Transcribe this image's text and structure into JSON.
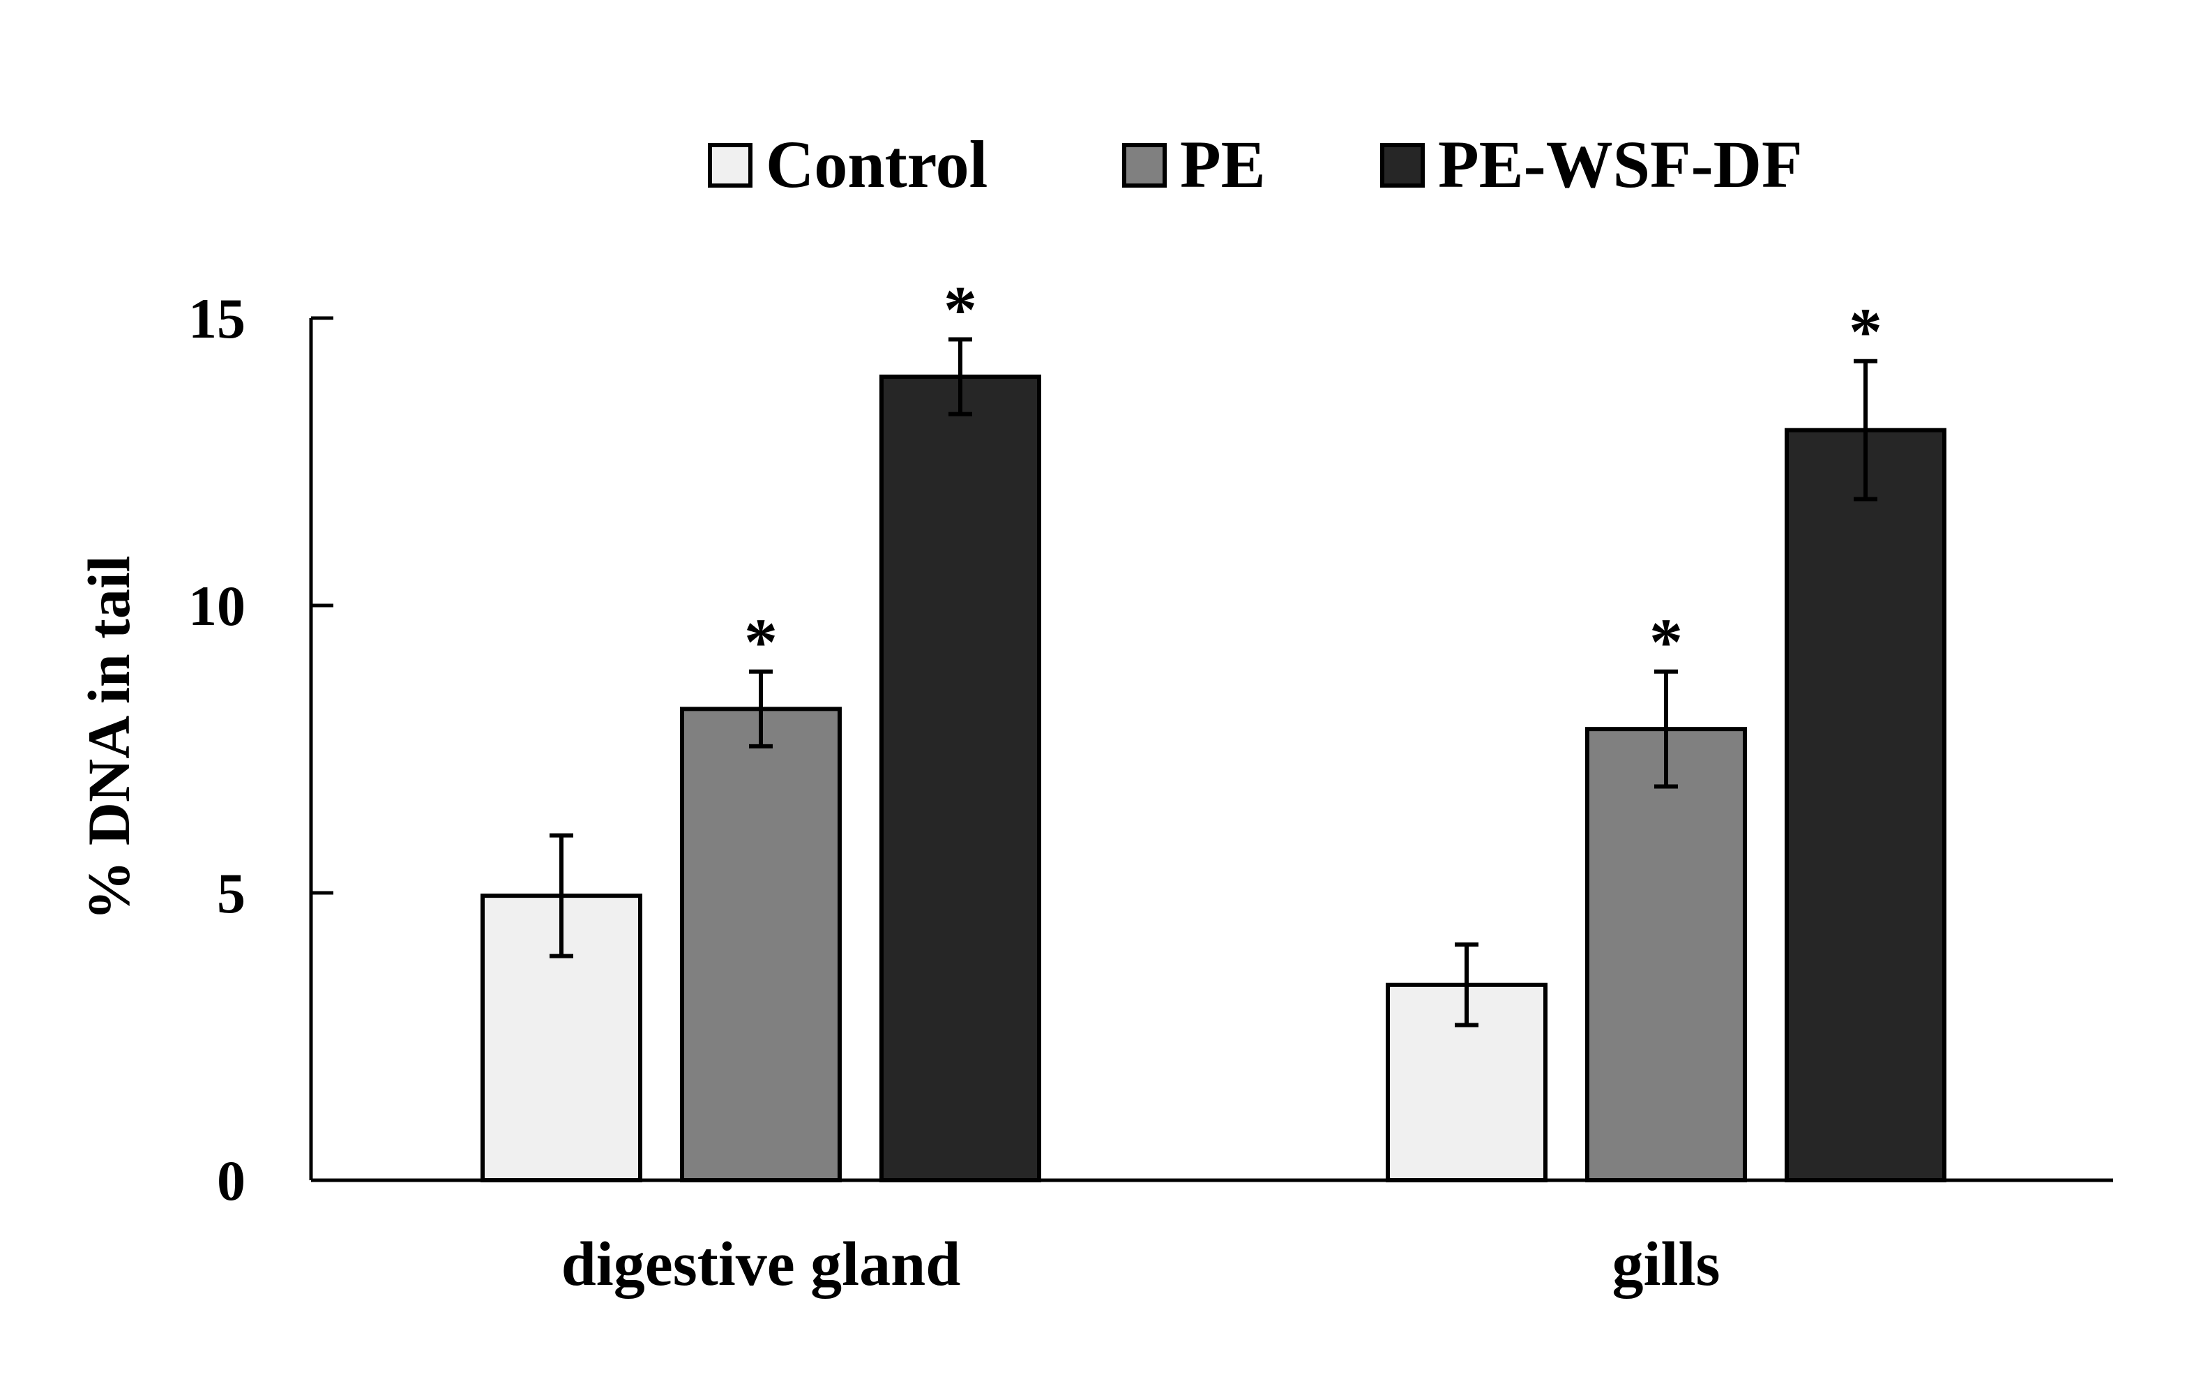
{
  "chart_data": {
    "type": "bar",
    "title": "",
    "xlabel": "",
    "ylabel": "% DNA in tail",
    "ylim": [
      0,
      15
    ],
    "yticks": [
      0,
      5,
      10,
      15
    ],
    "grid": false,
    "legend_position": "top",
    "categories": [
      "digestive gland",
      "gills"
    ],
    "series": [
      {
        "name": "Control",
        "color": "#f0f0f0",
        "values": [
          4.95,
          3.4
        ],
        "errors": [
          1.05,
          0.7
        ],
        "significant": [
          false,
          false
        ]
      },
      {
        "name": "PE",
        "color": "#808080",
        "values": [
          8.2,
          7.85
        ],
        "errors": [
          0.65,
          1.0
        ],
        "significant": [
          true,
          true
        ]
      },
      {
        "name": "PE-WSF-DF",
        "color": "#262626",
        "values": [
          13.98,
          13.05
        ],
        "errors": [
          0.65,
          1.2
        ],
        "significant": [
          true,
          true
        ]
      }
    ],
    "significance_marker": "*"
  }
}
